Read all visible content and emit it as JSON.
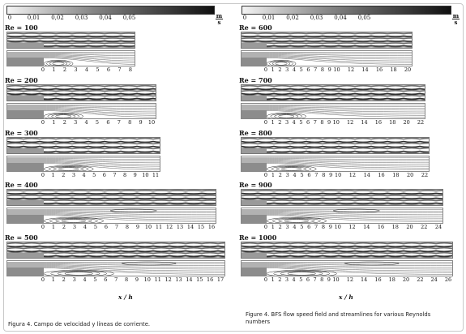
{
  "colorbar": {
    "ticks": [
      "0",
      "0,01",
      "0,02",
      "0,03",
      "0,04",
      "0,05"
    ],
    "unit_num": "m",
    "unit_den": "s"
  },
  "xlabel": "x / h",
  "left_panels": [
    {
      "re": "Re = 100",
      "ticks": [
        "0",
        "1",
        "2",
        "3",
        "4",
        "5",
        "6",
        "7",
        "8"
      ]
    },
    {
      "re": "Re = 200",
      "ticks": [
        "0",
        "1",
        "2",
        "3",
        "4",
        "5",
        "6",
        "7",
        "8",
        "9",
        "10"
      ]
    },
    {
      "re": "Re = 300",
      "ticks": [
        "0",
        "1",
        "2",
        "3",
        "4",
        "5",
        "6",
        "7",
        "8",
        "9",
        "10",
        "11"
      ]
    },
    {
      "re": "Re = 400",
      "ticks": [
        "0",
        "1",
        "2",
        "3",
        "4",
        "5",
        "6",
        "7",
        "8",
        "9",
        "10",
        "11",
        "12",
        "13",
        "14",
        "15",
        "16"
      ]
    },
    {
      "re": "Re = 500",
      "ticks": [
        "0",
        "1",
        "2",
        "3",
        "4",
        "5",
        "6",
        "7",
        "8",
        "9",
        "10",
        "11",
        "12",
        "13",
        "14",
        "15",
        "16",
        "17"
      ]
    }
  ],
  "right_panels": [
    {
      "re": "Re = 600",
      "ticks": [
        "0",
        "1",
        "2",
        "3",
        "4",
        "5",
        "6",
        "7",
        "8",
        "9",
        "10",
        "12",
        "14",
        "16",
        "18",
        "20"
      ]
    },
    {
      "re": "Re = 700",
      "ticks": [
        "0",
        "1",
        "2",
        "3",
        "4",
        "5",
        "6",
        "7",
        "8",
        "9",
        "10",
        "12",
        "14",
        "16",
        "18",
        "20",
        "22"
      ]
    },
    {
      "re": "Re = 800",
      "ticks": [
        "0",
        "1",
        "2",
        "3",
        "4",
        "5",
        "6",
        "7",
        "8",
        "9",
        "10",
        "12",
        "14",
        "16",
        "18",
        "20",
        "22"
      ]
    },
    {
      "re": "Re = 900",
      "ticks": [
        "0",
        "1",
        "2",
        "3",
        "4",
        "5",
        "6",
        "7",
        "8",
        "9",
        "10",
        "12",
        "14",
        "16",
        "18",
        "20",
        "22",
        "24"
      ]
    },
    {
      "re": "Re = 1000",
      "ticks": [
        "0",
        "1",
        "2",
        "3",
        "4",
        "5",
        "6",
        "7",
        "8",
        "9",
        "10",
        "12",
        "14",
        "16",
        "18",
        "20",
        "22",
        "24",
        "26"
      ]
    }
  ],
  "captions": {
    "spanish": "Figura 4. Campo de velocidad y líneas de corriente.",
    "english": "Figure 4. BFS flow speed field and streamlines for various Reynolds numbers"
  }
}
